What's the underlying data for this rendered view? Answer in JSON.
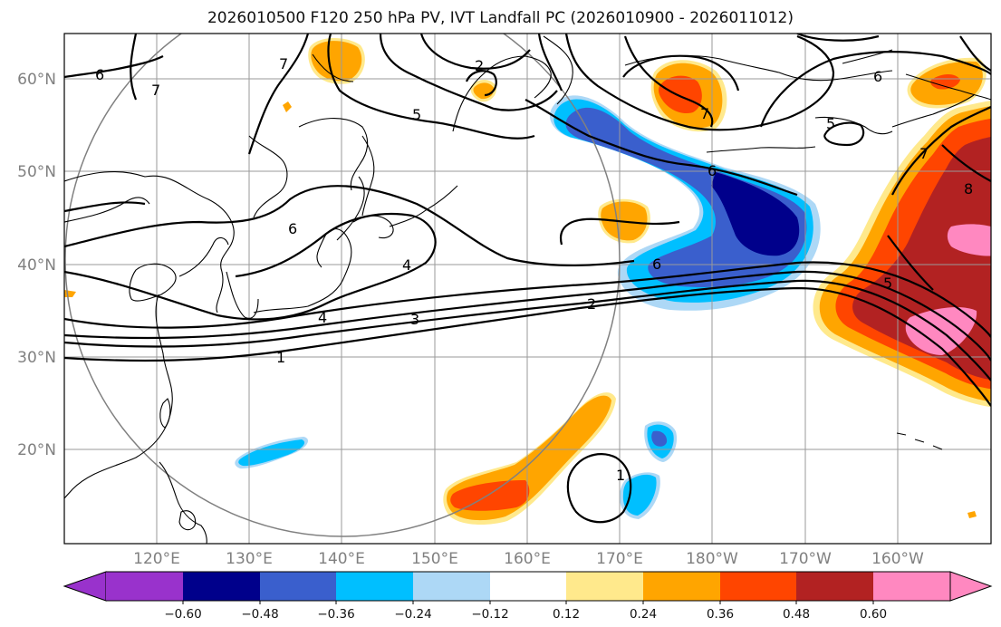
{
  "title": "2026010500 F120 250 hPa PV, IVT Landfall PC (2026010900 - 2026011012)",
  "map": {
    "lon_ticks": [
      "120°E",
      "130°E",
      "140°E",
      "150°E",
      "160°E",
      "170°E",
      "180°W",
      "170°W",
      "160°W"
    ],
    "lat_ticks": [
      "60°N",
      "50°N",
      "40°N",
      "30°N",
      "20°N"
    ],
    "pv_contour_labels": [
      "1",
      "2",
      "3",
      "4",
      "4",
      "5",
      "5",
      "5",
      "6",
      "6",
      "6",
      "6",
      "6",
      "7",
      "7",
      "7",
      "7",
      "8",
      "2",
      "1"
    ]
  },
  "colorbar": {
    "ticks": [
      "−0.60",
      "−0.48",
      "−0.36",
      "−0.24",
      "−0.12",
      "0.12",
      "0.24",
      "0.36",
      "0.48",
      "0.60"
    ],
    "colors": [
      "#9932cc",
      "#00008b",
      "#3a5fcd",
      "#00bfff",
      "#add8f6",
      "#ffffff",
      "#ffe98c",
      "#ffa500",
      "#ff4500",
      "#b22222",
      "#ff88c0"
    ]
  }
}
